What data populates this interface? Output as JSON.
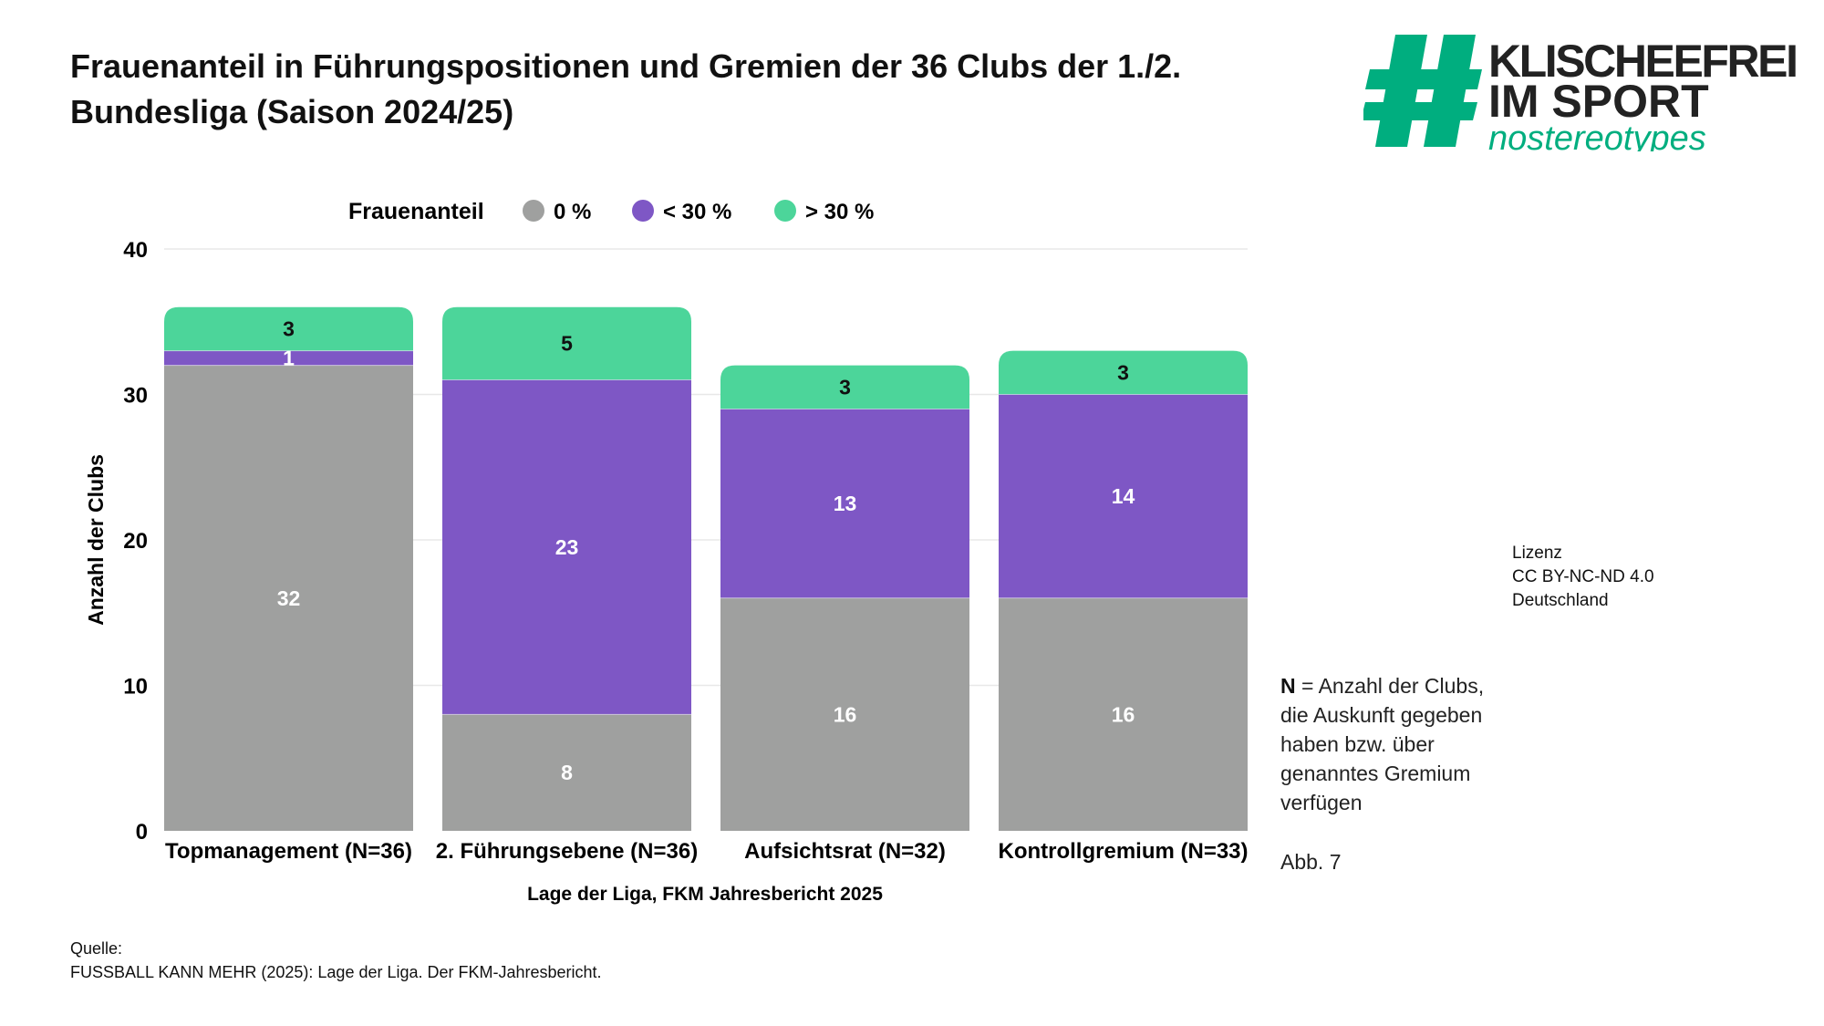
{
  "title": "Frauenanteil in Führungspositionen und Gremien der 36 Clubs der 1./2. Bundesliga (Saison 2024/25)",
  "logo": {
    "line1": "KLISCHEEFREI",
    "line2": "IM SPORT",
    "line3": "nostereotypes",
    "color": "#00ae7f"
  },
  "license": {
    "label": "Lizenz",
    "name": "CC BY-NC-ND 4.0",
    "region": "Deutschland"
  },
  "note": {
    "bold": "N",
    "text": " = Anzahl der Clubs,",
    "lines": [
      "die Auskunft gegeben",
      "haben bzw. über",
      "genanntes Gremium",
      "verfügen"
    ]
  },
  "figure_label": "Abb. 7",
  "source": {
    "label": "Quelle:",
    "text": "FUSSBALL KANN MEHR (2025): Lage der Liga. Der FKM-Jahresbericht."
  },
  "chart_data": {
    "type": "bar",
    "stacked": true,
    "categories": [
      "Topmanagement (N=36)",
      "2. Führungsebene (N=36)",
      "Aufsichtsrat (N=32)",
      "Kontrollgremium (N=33)"
    ],
    "series": [
      {
        "name": "0 %",
        "color": "#9fa09f",
        "label_color": "#ffffff",
        "values": [
          32,
          8,
          16,
          16
        ]
      },
      {
        "name": "< 30 %",
        "color": "#7e57c5",
        "label_color": "#ffffff",
        "values": [
          1,
          23,
          13,
          14
        ]
      },
      {
        "name": "> 30 %",
        "color": "#4cd59a",
        "label_color": "#111111",
        "values": [
          3,
          5,
          3,
          3
        ]
      }
    ],
    "legend_title": "Frauenanteil",
    "legend_placement": "top",
    "xlabel": "Lage der Liga, FKM Jahresbericht 2025",
    "ylabel": "Anzahl der Clubs",
    "ylim": [
      0,
      40
    ],
    "yticks": [
      0,
      10,
      20,
      30,
      40
    ],
    "grid": true
  }
}
